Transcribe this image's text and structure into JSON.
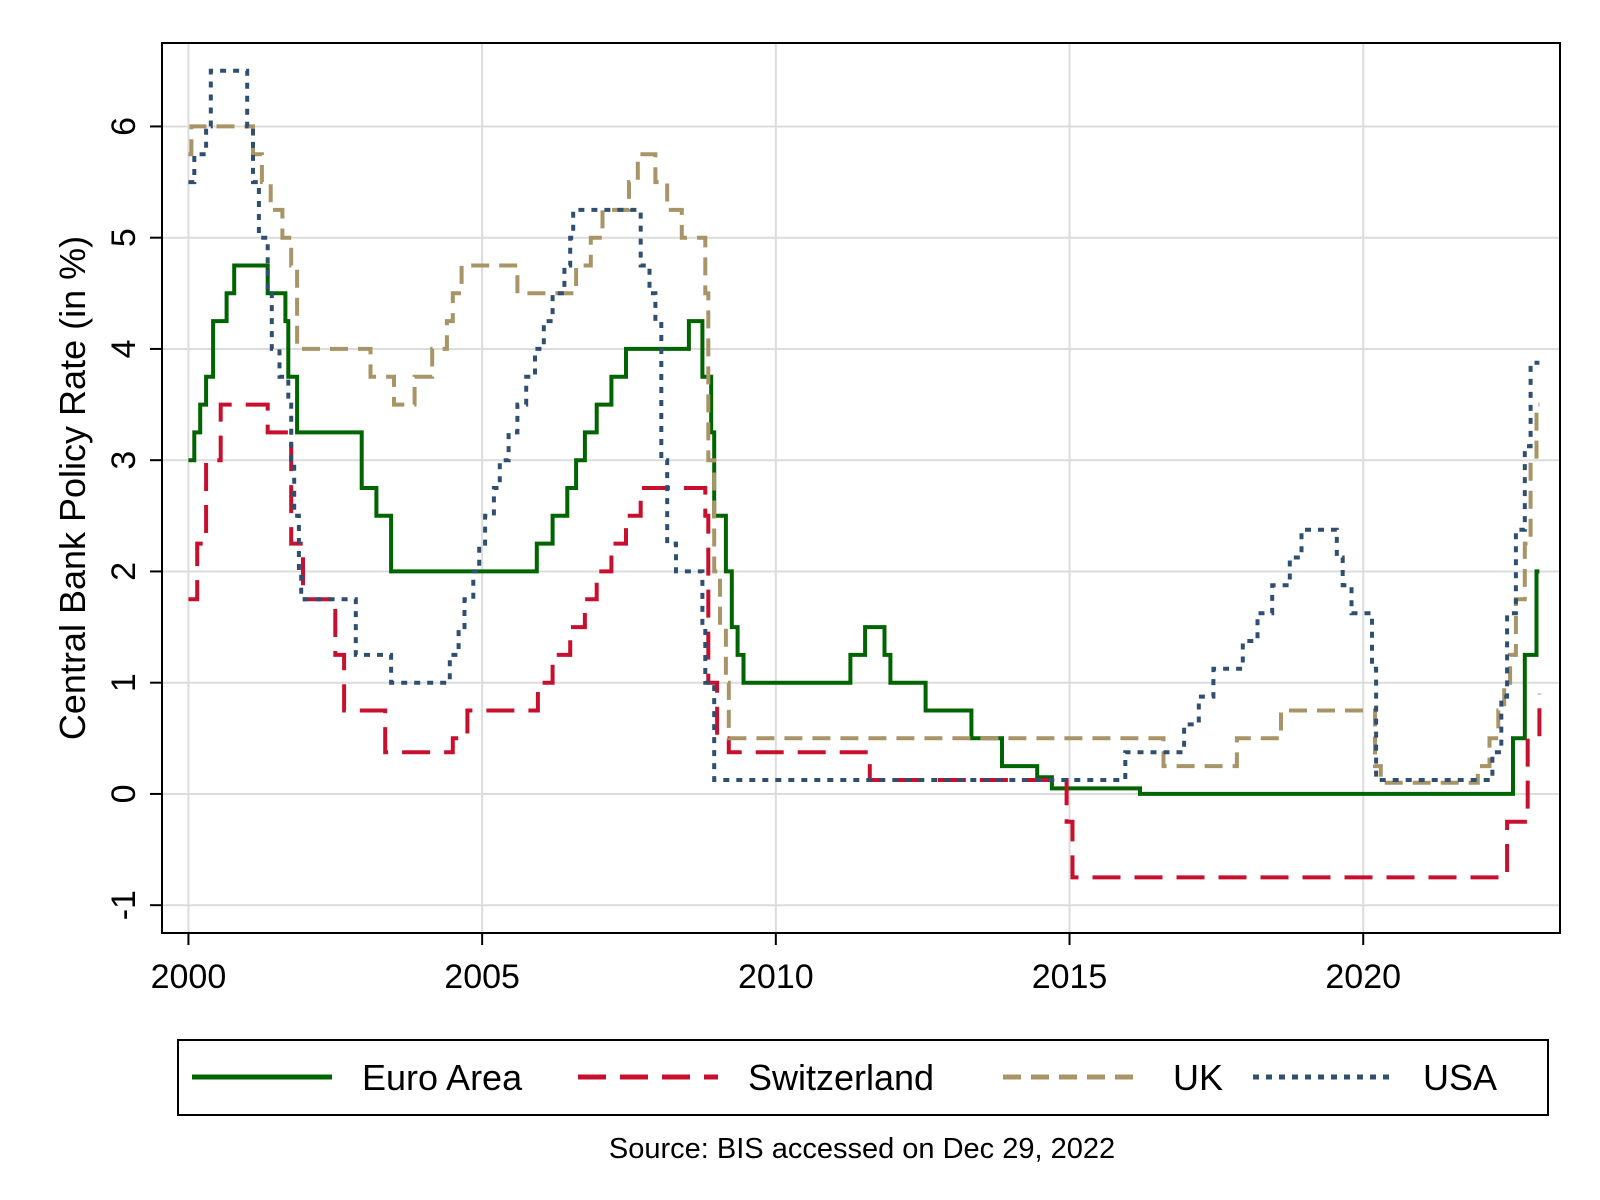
{
  "chart_data": {
    "type": "line",
    "step": true,
    "title": "",
    "xlabel": "",
    "ylabel": "Central Bank Policy Rate (in %)",
    "xlim": [
      1999.55,
      2023.35
    ],
    "ylim": [
      -1.25,
      6.75
    ],
    "xticks": [
      2000,
      2005,
      2010,
      2015,
      2020
    ],
    "yticks": [
      -1,
      0,
      1,
      2,
      3,
      4,
      5,
      6
    ],
    "grid": true,
    "legend_position": "bottom",
    "note": "Source: BIS accessed on Dec 29, 2022",
    "series": [
      {
        "name": "Euro Area",
        "color": "#006400",
        "dash": "solid",
        "points": [
          [
            2000.0,
            3.0
          ],
          [
            2000.1,
            3.25
          ],
          [
            2000.2,
            3.5
          ],
          [
            2000.3,
            3.75
          ],
          [
            2000.42,
            4.25
          ],
          [
            2000.65,
            4.5
          ],
          [
            2000.78,
            4.75
          ],
          [
            2001.35,
            4.5
          ],
          [
            2001.65,
            4.25
          ],
          [
            2001.7,
            3.75
          ],
          [
            2001.85,
            3.25
          ],
          [
            2002.95,
            2.75
          ],
          [
            2003.2,
            2.5
          ],
          [
            2003.45,
            2.0
          ],
          [
            2005.93,
            2.25
          ],
          [
            2006.2,
            2.5
          ],
          [
            2006.45,
            2.75
          ],
          [
            2006.6,
            3.0
          ],
          [
            2006.75,
            3.25
          ],
          [
            2006.95,
            3.5
          ],
          [
            2007.2,
            3.75
          ],
          [
            2007.45,
            4.0
          ],
          [
            2008.52,
            4.25
          ],
          [
            2008.75,
            3.75
          ],
          [
            2008.9,
            3.25
          ],
          [
            2008.95,
            2.5
          ],
          [
            2009.15,
            2.0
          ],
          [
            2009.25,
            1.5
          ],
          [
            2009.35,
            1.25
          ],
          [
            2009.45,
            1.0
          ],
          [
            2011.27,
            1.25
          ],
          [
            2011.52,
            1.5
          ],
          [
            2011.85,
            1.25
          ],
          [
            2011.95,
            1.0
          ],
          [
            2012.55,
            0.75
          ],
          [
            2013.33,
            0.5
          ],
          [
            2013.85,
            0.25
          ],
          [
            2014.45,
            0.15
          ],
          [
            2014.7,
            0.05
          ],
          [
            2016.2,
            0.0
          ],
          [
            2022.55,
            0.5
          ],
          [
            2022.75,
            1.25
          ],
          [
            2022.95,
            2.0
          ],
          [
            2023.0,
            2.0
          ]
        ]
      },
      {
        "name": "Switzerland",
        "color": "#c8102e",
        "dash": "long-dash",
        "points": [
          [
            2000.0,
            1.75
          ],
          [
            2000.15,
            2.25
          ],
          [
            2000.3,
            3.0
          ],
          [
            2000.55,
            3.5
          ],
          [
            2001.35,
            3.25
          ],
          [
            2001.75,
            2.25
          ],
          [
            2001.95,
            1.75
          ],
          [
            2002.5,
            1.25
          ],
          [
            2002.65,
            0.75
          ],
          [
            2003.35,
            0.375
          ],
          [
            2004.5,
            0.5
          ],
          [
            2004.75,
            0.75
          ],
          [
            2005.95,
            1.0
          ],
          [
            2006.2,
            1.25
          ],
          [
            2006.5,
            1.5
          ],
          [
            2006.75,
            1.75
          ],
          [
            2006.95,
            2.0
          ],
          [
            2007.2,
            2.25
          ],
          [
            2007.45,
            2.5
          ],
          [
            2007.7,
            2.75
          ],
          [
            2008.8,
            2.5
          ],
          [
            2008.85,
            1.0
          ],
          [
            2009.0,
            0.5
          ],
          [
            2009.2,
            0.375
          ],
          [
            2011.6,
            0.125
          ],
          [
            2014.95,
            -0.25
          ],
          [
            2015.05,
            -0.75
          ],
          [
            2022.45,
            -0.25
          ],
          [
            2022.8,
            0.5
          ],
          [
            2023.0,
            0.9
          ]
        ]
      },
      {
        "name": "UK",
        "color": "#a89466",
        "dash": "dash",
        "points": [
          [
            2000.0,
            5.75
          ],
          [
            2000.05,
            6.0
          ],
          [
            2001.1,
            5.75
          ],
          [
            2001.25,
            5.5
          ],
          [
            2001.4,
            5.25
          ],
          [
            2001.6,
            5.0
          ],
          [
            2001.75,
            4.75
          ],
          [
            2001.85,
            4.0
          ],
          [
            2003.1,
            3.75
          ],
          [
            2003.5,
            3.5
          ],
          [
            2003.85,
            3.75
          ],
          [
            2004.15,
            4.0
          ],
          [
            2004.4,
            4.25
          ],
          [
            2004.5,
            4.5
          ],
          [
            2004.65,
            4.75
          ],
          [
            2005.6,
            4.5
          ],
          [
            2006.6,
            4.75
          ],
          [
            2006.85,
            5.0
          ],
          [
            2007.05,
            5.25
          ],
          [
            2007.5,
            5.5
          ],
          [
            2007.65,
            5.75
          ],
          [
            2007.95,
            5.5
          ],
          [
            2008.15,
            5.25
          ],
          [
            2008.4,
            5.0
          ],
          [
            2008.8,
            4.5
          ],
          [
            2008.85,
            3.0
          ],
          [
            2008.95,
            2.0
          ],
          [
            2009.05,
            1.5
          ],
          [
            2009.15,
            1.0
          ],
          [
            2009.2,
            0.5
          ],
          [
            2016.6,
            0.25
          ],
          [
            2017.85,
            0.5
          ],
          [
            2018.6,
            0.75
          ],
          [
            2020.2,
            0.25
          ],
          [
            2020.3,
            0.1
          ],
          [
            2021.95,
            0.25
          ],
          [
            2022.15,
            0.5
          ],
          [
            2022.3,
            0.75
          ],
          [
            2022.4,
            1.0
          ],
          [
            2022.5,
            1.25
          ],
          [
            2022.6,
            1.75
          ],
          [
            2022.75,
            2.25
          ],
          [
            2022.85,
            3.0
          ],
          [
            2022.95,
            3.5
          ],
          [
            2023.0,
            3.5
          ]
        ]
      },
      {
        "name": "USA",
        "color": "#2f4f70",
        "dash": "dot",
        "points": [
          [
            2000.0,
            5.5
          ],
          [
            2000.1,
            5.75
          ],
          [
            2000.3,
            6.0
          ],
          [
            2000.38,
            6.5
          ],
          [
            2001.0,
            6.0
          ],
          [
            2001.1,
            5.5
          ],
          [
            2001.2,
            5.0
          ],
          [
            2001.35,
            4.5
          ],
          [
            2001.42,
            4.0
          ],
          [
            2001.55,
            3.75
          ],
          [
            2001.7,
            3.5
          ],
          [
            2001.75,
            3.0
          ],
          [
            2001.8,
            2.5
          ],
          [
            2001.88,
            2.0
          ],
          [
            2001.92,
            1.75
          ],
          [
            2002.85,
            1.25
          ],
          [
            2003.45,
            1.0
          ],
          [
            2004.45,
            1.25
          ],
          [
            2004.6,
            1.5
          ],
          [
            2004.7,
            1.75
          ],
          [
            2004.85,
            2.0
          ],
          [
            2004.95,
            2.25
          ],
          [
            2005.05,
            2.5
          ],
          [
            2005.2,
            2.75
          ],
          [
            2005.3,
            3.0
          ],
          [
            2005.45,
            3.25
          ],
          [
            2005.6,
            3.5
          ],
          [
            2005.75,
            3.75
          ],
          [
            2005.9,
            4.0
          ],
          [
            2006.05,
            4.25
          ],
          [
            2006.2,
            4.5
          ],
          [
            2006.4,
            4.75
          ],
          [
            2006.5,
            5.0
          ],
          [
            2006.55,
            5.25
          ],
          [
            2007.7,
            4.75
          ],
          [
            2007.85,
            4.5
          ],
          [
            2007.95,
            4.25
          ],
          [
            2008.05,
            3.0
          ],
          [
            2008.15,
            2.25
          ],
          [
            2008.3,
            2.0
          ],
          [
            2008.75,
            1.5
          ],
          [
            2008.8,
            1.0
          ],
          [
            2008.95,
            0.125
          ],
          [
            2015.95,
            0.375
          ],
          [
            2016.95,
            0.625
          ],
          [
            2017.2,
            0.875
          ],
          [
            2017.45,
            1.125
          ],
          [
            2017.95,
            1.375
          ],
          [
            2018.2,
            1.625
          ],
          [
            2018.45,
            1.875
          ],
          [
            2018.75,
            2.125
          ],
          [
            2018.95,
            2.375
          ],
          [
            2019.55,
            2.125
          ],
          [
            2019.65,
            1.875
          ],
          [
            2019.8,
            1.625
          ],
          [
            2020.15,
            1.125
          ],
          [
            2020.22,
            0.125
          ],
          [
            2022.2,
            0.375
          ],
          [
            2022.35,
            0.875
          ],
          [
            2022.45,
            1.625
          ],
          [
            2022.6,
            2.375
          ],
          [
            2022.75,
            3.125
          ],
          [
            2022.85,
            3.875
          ],
          [
            2023.0,
            3.875
          ]
        ]
      }
    ]
  }
}
